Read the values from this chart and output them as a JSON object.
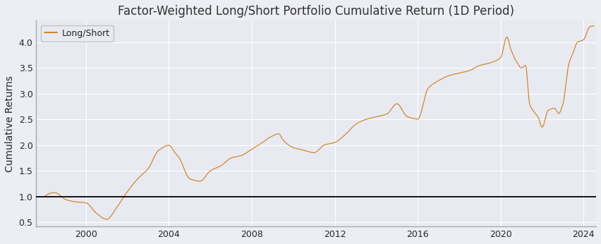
{
  "title": "Factor-Weighted Long/Short Portfolio Cumulative Return (1D Period)",
  "ylabel": "Cumulative Returns",
  "legend_label": "Long/Short",
  "line_color": "#D4872A",
  "hline_color": "black",
  "hline_y": 1.0,
  "background_color": "#E8EAF2",
  "fig_facecolor": "#ECEEF4",
  "ylim": [
    0.42,
    4.42
  ],
  "xlim_start": 1997.6,
  "xlim_end": 2024.6,
  "xticks": [
    2000,
    2004,
    2008,
    2012,
    2016,
    2020,
    2024
  ],
  "yticks": [
    0.5,
    1.0,
    1.5,
    2.0,
    2.5,
    3.0,
    3.5,
    4.0
  ],
  "title_fontsize": 12,
  "label_fontsize": 10,
  "tick_fontsize": 9,
  "waypoints": [
    [
      1998.0,
      1.0
    ],
    [
      1998.5,
      1.08
    ],
    [
      1999.0,
      0.95
    ],
    [
      1999.5,
      0.9
    ],
    [
      2000.0,
      0.88
    ],
    [
      2000.5,
      0.68
    ],
    [
      2001.0,
      0.56
    ],
    [
      2001.5,
      0.8
    ],
    [
      2002.0,
      1.1
    ],
    [
      2002.5,
      1.35
    ],
    [
      2003.0,
      1.55
    ],
    [
      2003.5,
      1.9
    ],
    [
      2004.0,
      2.0
    ],
    [
      2004.3,
      1.85
    ],
    [
      2004.5,
      1.75
    ],
    [
      2005.0,
      1.35
    ],
    [
      2005.5,
      1.3
    ],
    [
      2006.0,
      1.5
    ],
    [
      2006.5,
      1.6
    ],
    [
      2007.0,
      1.75
    ],
    [
      2007.5,
      1.8
    ],
    [
      2008.0,
      1.92
    ],
    [
      2008.5,
      2.05
    ],
    [
      2009.0,
      2.18
    ],
    [
      2009.3,
      2.22
    ],
    [
      2009.5,
      2.1
    ],
    [
      2010.0,
      1.95
    ],
    [
      2010.5,
      1.9
    ],
    [
      2011.0,
      1.85
    ],
    [
      2011.5,
      2.0
    ],
    [
      2012.0,
      2.05
    ],
    [
      2012.5,
      2.2
    ],
    [
      2013.0,
      2.4
    ],
    [
      2013.5,
      2.5
    ],
    [
      2014.0,
      2.55
    ],
    [
      2014.5,
      2.6
    ],
    [
      2015.0,
      2.8
    ],
    [
      2015.5,
      2.55
    ],
    [
      2016.0,
      2.5
    ],
    [
      2016.5,
      3.1
    ],
    [
      2017.0,
      3.25
    ],
    [
      2017.5,
      3.35
    ],
    [
      2018.0,
      3.4
    ],
    [
      2018.5,
      3.45
    ],
    [
      2019.0,
      3.55
    ],
    [
      2019.5,
      3.6
    ],
    [
      2020.0,
      3.7
    ],
    [
      2020.3,
      4.1
    ],
    [
      2020.5,
      3.85
    ],
    [
      2020.8,
      3.6
    ],
    [
      2021.0,
      3.5
    ],
    [
      2021.2,
      3.55
    ],
    [
      2021.4,
      2.8
    ],
    [
      2021.6,
      2.65
    ],
    [
      2021.8,
      2.55
    ],
    [
      2022.0,
      2.35
    ],
    [
      2022.3,
      2.68
    ],
    [
      2022.6,
      2.72
    ],
    [
      2022.8,
      2.62
    ],
    [
      2023.0,
      2.8
    ],
    [
      2023.3,
      3.6
    ],
    [
      2023.5,
      3.8
    ],
    [
      2023.7,
      4.0
    ],
    [
      2024.0,
      4.05
    ],
    [
      2024.3,
      4.3
    ],
    [
      2024.5,
      4.32
    ]
  ]
}
